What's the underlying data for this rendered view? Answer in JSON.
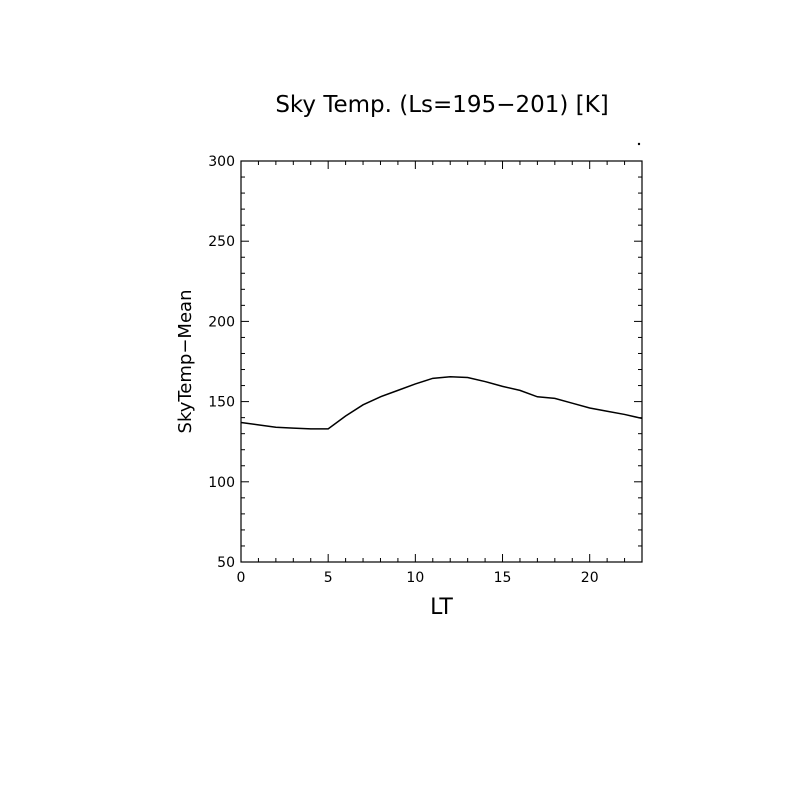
{
  "chart_data": {
    "type": "line",
    "title": "Sky Temp. (Ls=195−201) [K]",
    "xlabel": "LT",
    "ylabel": "SkyTemp−Mean",
    "xlim": [
      0,
      23
    ],
    "ylim": [
      50,
      300
    ],
    "x_ticks": [
      0,
      5,
      10,
      15,
      20
    ],
    "y_ticks": [
      50,
      100,
      150,
      200,
      250,
      300
    ],
    "grid": false,
    "series": [
      {
        "x": [
          0,
          1,
          2,
          3,
          4,
          5,
          6,
          7,
          8,
          9,
          10,
          11,
          12,
          13,
          14,
          15,
          16,
          17,
          18,
          19,
          20,
          21,
          22,
          23
        ],
        "values": [
          137,
          135.5,
          134,
          133.5,
          133,
          133,
          141,
          148,
          153,
          157,
          161,
          164.5,
          165.5,
          165,
          162.5,
          159.5,
          157,
          153,
          152,
          149,
          146,
          144,
          142,
          139.5
        ]
      }
    ]
  },
  "colors": {
    "line": "#000000",
    "axes": "#000000",
    "background": "#ffffff"
  }
}
